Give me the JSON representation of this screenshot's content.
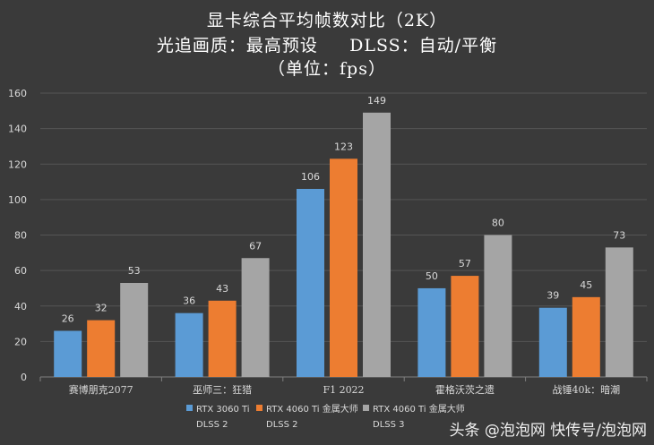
{
  "chart_data": {
    "type": "bar",
    "title_lines": [
      "显卡综合平均帧数对比（2K）",
      "光追画质：最高预设     DLSS：自动/平衡",
      "（单位：fps）"
    ],
    "categories": [
      "赛博朋克2077",
      "巫师三：狂猎",
      "F1 2022",
      "霍格沃茨之遗",
      "战锤40k：暗潮"
    ],
    "series": [
      {
        "name": "RTX 3060 Ti DLSS 2",
        "legend_lines": [
          "RTX 3060 Ti",
          "DLSS 2"
        ],
        "color": "#5b9bd5",
        "values": [
          26,
          36,
          106,
          50,
          39
        ]
      },
      {
        "name": "RTX 4060 Ti 金属大师 DLSS 2",
        "legend_lines": [
          "RTX 4060 Ti 金属大师",
          "DLSS 2"
        ],
        "color": "#ed7d31",
        "values": [
          32,
          43,
          123,
          57,
          45
        ]
      },
      {
        "name": "RTX 4060 Ti 金属大师 DLSS 3",
        "legend_lines": [
          "RTX 4060 Ti 金属大师",
          "DLSS 3"
        ],
        "color": "#a5a5a5",
        "values": [
          53,
          67,
          149,
          80,
          73
        ]
      }
    ],
    "ylim": [
      0,
      160
    ],
    "yticks": [
      0,
      20,
      40,
      60,
      80,
      100,
      120,
      140,
      160
    ],
    "grid": true,
    "legend_position": "bottom"
  },
  "watermark": "头条 @泡泡网 快传号/泡泡网"
}
